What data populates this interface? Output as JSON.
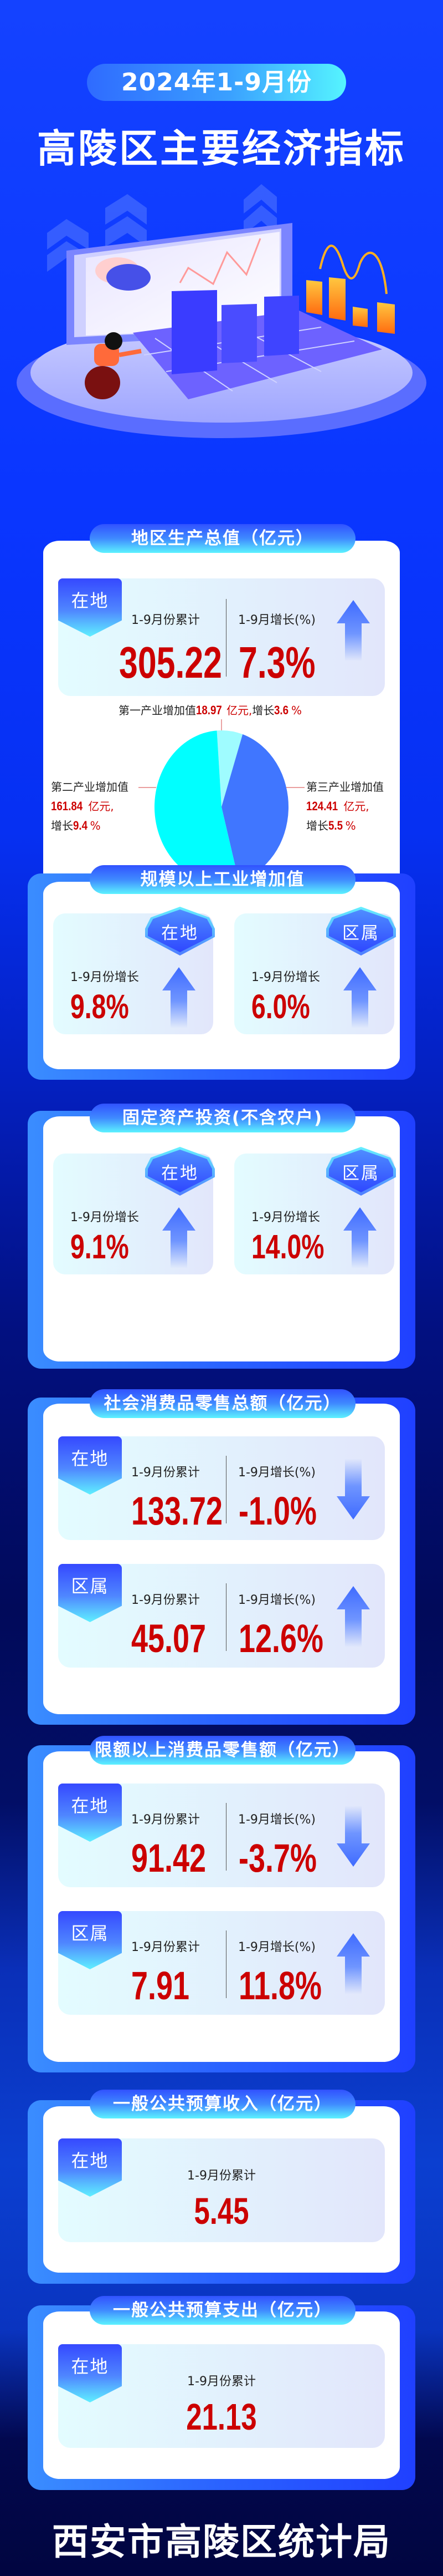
{
  "header": {
    "period_pill": "2024年1-9月份",
    "title": "高陵区主要经济指标"
  },
  "gdp": {
    "title": "地区生产总值（亿元）",
    "panel": {
      "badge": "在地",
      "cum_label": "1-9月份累计",
      "cum_value": "305.22",
      "growth_label": "1-9月增长(%)",
      "growth_value": "7.3%",
      "trend": "up"
    },
    "pie_labels": [
      {
        "name": "第一产业增加值",
        "value": "18.97",
        "unit": "亿元,",
        "growth_prefix": "增长",
        "growth": "3.6",
        "pct": "%"
      },
      {
        "name": "第二产业增加值",
        "value": "161.84",
        "unit": "亿元,",
        "growth_prefix": "增长",
        "growth": "9.4",
        "pct": "%"
      },
      {
        "name": "第三产业增加值",
        "value": "124.41",
        "unit": "亿元,",
        "growth_prefix": "增长",
        "growth": "5.5",
        "pct": "%"
      }
    ]
  },
  "chart_data": {
    "type": "pie",
    "categories": [
      "第一产业增加值",
      "第二产业增加值",
      "第三产业增加值"
    ],
    "values": [
      18.97,
      161.84,
      124.41
    ],
    "growth_percent": [
      3.6,
      9.4,
      5.5
    ],
    "unit": "亿元",
    "colors": [
      "#9ffcff",
      "#00ffff",
      "#4076ff"
    ]
  },
  "industry": {
    "title": "规模以上工业增加值",
    "panels": [
      {
        "badge": "在地",
        "label": "1-9月份增长",
        "value": "9.8%",
        "trend": "up"
      },
      {
        "badge": "区属",
        "label": "1-9月份增长",
        "value": "6.0%",
        "trend": "up"
      }
    ]
  },
  "investment": {
    "title": "固定资产投资(不含农户)",
    "panels": [
      {
        "badge": "在地",
        "label": "1-9月份增长",
        "value": "9.1%",
        "trend": "up"
      },
      {
        "badge": "区属",
        "label": "1-9月份增长",
        "value": "14.0%",
        "trend": "up"
      }
    ]
  },
  "retail": {
    "title": "社会消费品零售总额（亿元）",
    "rows": [
      {
        "badge": "在地",
        "cum_label": "1-9月份累计",
        "cum_value": "133.72",
        "growth_label": "1-9月增长(%)",
        "growth_value": "-1.0%",
        "trend": "down"
      },
      {
        "badge": "区属",
        "cum_label": "1-9月份累计",
        "cum_value": "45.07",
        "growth_label": "1-9月增长(%)",
        "growth_value": "12.6%",
        "trend": "up"
      }
    ]
  },
  "retail_above": {
    "title": "限额以上消费品零售额（亿元）",
    "rows": [
      {
        "badge": "在地",
        "cum_label": "1-9月份累计",
        "cum_value": "91.42",
        "growth_label": "1-9月增长(%)",
        "growth_value": "-3.7%",
        "trend": "down"
      },
      {
        "badge": "区属",
        "cum_label": "1-9月份累计",
        "cum_value": "7.91",
        "growth_label": "1-9月增长(%)",
        "growth_value": "11.8%",
        "trend": "up"
      }
    ]
  },
  "budget_income": {
    "title": "一般公共预算收入（亿元）",
    "panel": {
      "badge": "在地",
      "label": "1-9月份累计",
      "value": "5.45"
    }
  },
  "budget_expense": {
    "title": "一般公共预算支出（亿元）",
    "panel": {
      "badge": "在地",
      "label": "1-9月份累计",
      "value": "21.13"
    }
  },
  "footer": "西安市高陵区统计局",
  "colors": {
    "value_red": "#cc0000",
    "accent_blue": "#2f48ff",
    "accent_cyan": "#5ff0ff"
  }
}
